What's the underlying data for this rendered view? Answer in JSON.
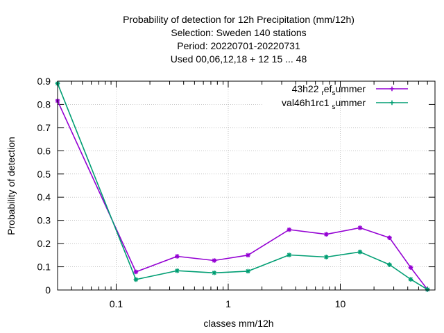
{
  "chart_data": {
    "type": "line",
    "title_lines": [
      "Probability of detection  for 12h Precipitation (mm/12h)",
      "Selection: Sweden    140 stations",
      "Period: 20220701-20220731",
      "Used  00,06,12,18  + 12 15 ... 48"
    ],
    "xlabel": "classes mm/12h",
    "ylabel": "Probability of detection",
    "xscale": "log",
    "xlim": [
      0.03,
      70
    ],
    "ylim": [
      0,
      0.9
    ],
    "xticks": [
      {
        "value": 0.1,
        "label": "0.1"
      },
      {
        "value": 1,
        "label": "1"
      },
      {
        "value": 10,
        "label": "10"
      }
    ],
    "yticks": [
      {
        "value": 0,
        "label": "0"
      },
      {
        "value": 0.1,
        "label": "0.1"
      },
      {
        "value": 0.2,
        "label": "0.2"
      },
      {
        "value": 0.3,
        "label": "0.3"
      },
      {
        "value": 0.4,
        "label": "0.4"
      },
      {
        "value": 0.5,
        "label": "0.5"
      },
      {
        "value": 0.6,
        "label": "0.6"
      },
      {
        "value": 0.7,
        "label": "0.7"
      },
      {
        "value": 0.8,
        "label": "0.8"
      },
      {
        "value": 0.9,
        "label": "0.9"
      }
    ],
    "grid": true,
    "legend_position": "top-right",
    "series": [
      {
        "name": "43h22 ref summer",
        "legend_parts": [
          "43h22 ",
          "r",
          "ef",
          "s",
          "ummer"
        ],
        "color": "#9400d3",
        "x": [
          0.03,
          0.15,
          0.35,
          0.75,
          1.5,
          3.5,
          7.5,
          15,
          27.5,
          42.5,
          60
        ],
        "y": [
          0.815,
          0.078,
          0.145,
          0.127,
          0.15,
          0.26,
          0.24,
          0.268,
          0.225,
          0.097,
          0.002
        ]
      },
      {
        "name": "val46h1rc1 summer",
        "legend_parts": [
          "val46h1rc1 ",
          "s",
          "ummer"
        ],
        "color": "#009e73",
        "x": [
          0.03,
          0.15,
          0.35,
          0.75,
          1.5,
          3.5,
          7.5,
          15,
          27.5,
          42.5,
          60
        ],
        "y": [
          0.89,
          0.045,
          0.083,
          0.074,
          0.081,
          0.151,
          0.142,
          0.164,
          0.109,
          0.046,
          0.002
        ]
      }
    ]
  }
}
